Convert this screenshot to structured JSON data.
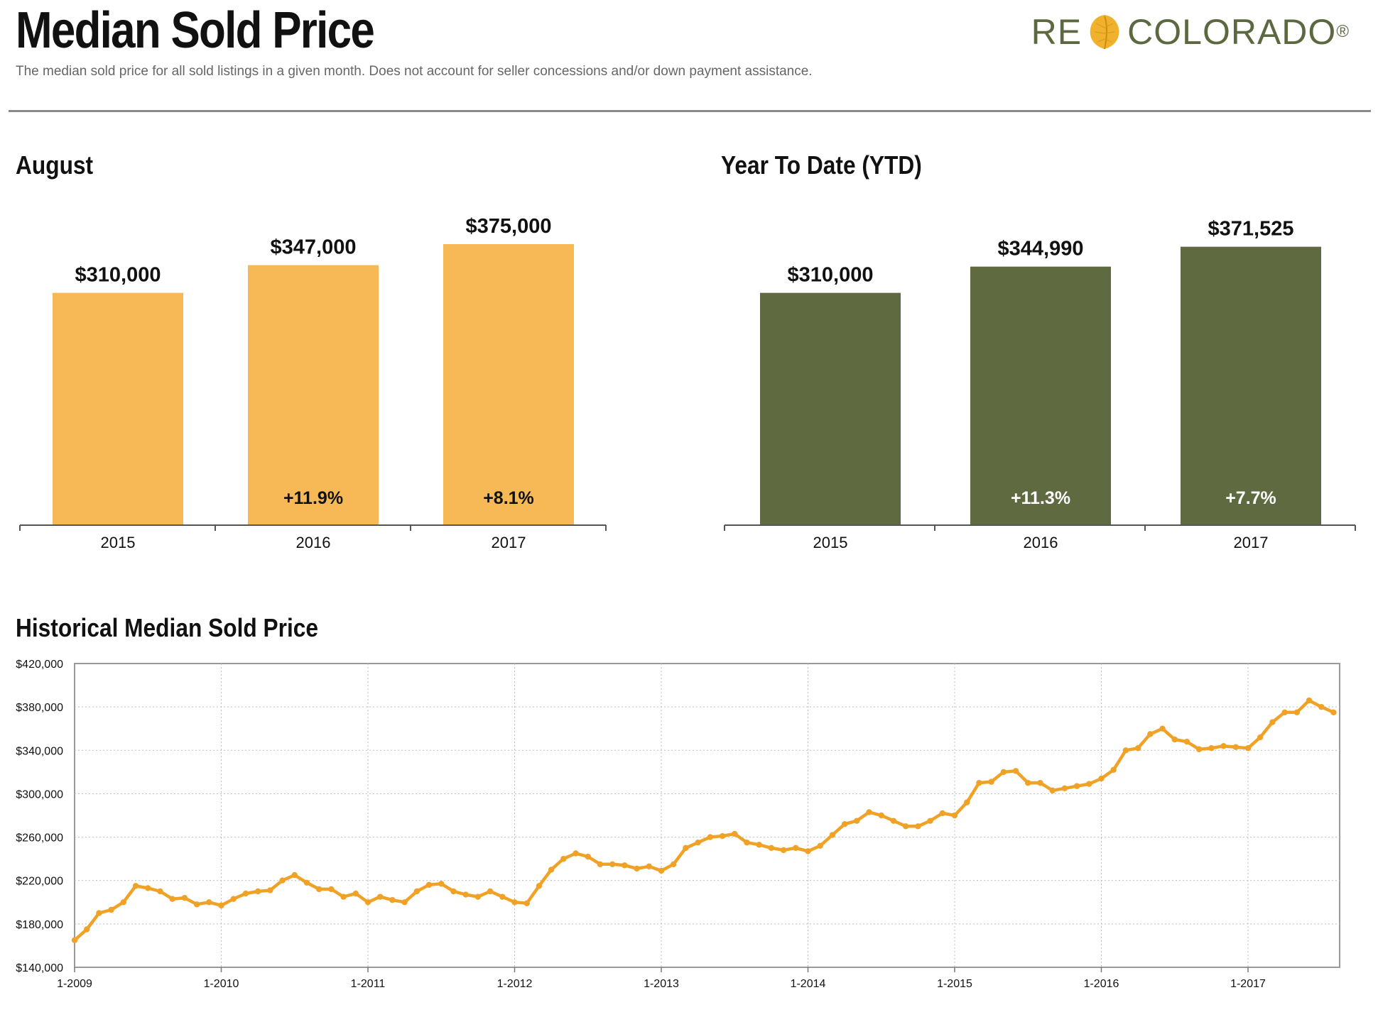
{
  "header": {
    "title": "Median Sold Price",
    "subtitle": "The median sold price for all sold listings in a given month. Does not account for seller concessions and/or down payment assistance.",
    "logo_left": "RE",
    "logo_right": "COLORADO",
    "logo_reg": "®"
  },
  "colors": {
    "august_bar": "#f6b955",
    "ytd_bar": "#5f6a41",
    "line": "#f0a226",
    "logo": "#5c6940"
  },
  "chart_data": [
    {
      "type": "bar",
      "title": "August",
      "categories": [
        "2015",
        "2016",
        "2017"
      ],
      "values": [
        310000,
        347000,
        375000
      ],
      "value_labels": [
        "$310,000",
        "$347,000",
        "$375,000"
      ],
      "change_labels": [
        "",
        "+11.9%",
        "+8.1%"
      ]
    },
    {
      "type": "bar",
      "title": "Year To Date (YTD)",
      "categories": [
        "2015",
        "2016",
        "2017"
      ],
      "values": [
        310000,
        344990,
        371525
      ],
      "value_labels": [
        "$310,000",
        "$344,990",
        "$371,525"
      ],
      "change_labels": [
        "",
        "+11.3%",
        "+7.7%"
      ]
    },
    {
      "type": "line",
      "title": "Historical Median Sold Price",
      "ylim": [
        140000,
        420000
      ],
      "y_ticks": [
        140000,
        180000,
        220000,
        260000,
        300000,
        340000,
        380000,
        420000
      ],
      "y_tick_labels": [
        "$140,000",
        "$180,000",
        "$220,000",
        "$260,000",
        "$300,000",
        "$340,000",
        "$380,000",
        "$420,000"
      ],
      "x_tick_labels": [
        "1-2009",
        "1-2010",
        "1-2011",
        "1-2012",
        "1-2013",
        "1-2014",
        "1-2015",
        "1-2016",
        "1-2017"
      ],
      "grid": true,
      "series": [
        {
          "start": "1-2009",
          "values": [
            165000,
            175000,
            190000,
            193000,
            200000,
            215000,
            213000,
            210000,
            203000,
            204000,
            198000,
            200000,
            197000,
            203000,
            208000,
            210000,
            211000,
            220000,
            225000,
            218000,
            212000,
            212000,
            205000,
            208000,
            200000,
            205000,
            202000,
            200000,
            210000,
            216000,
            217000,
            210000,
            207000,
            205000,
            210000,
            205000,
            200000,
            199000,
            215000,
            230000,
            240000,
            245000,
            242000,
            235000,
            235000,
            234000,
            231000,
            233000,
            229000,
            235000,
            250000,
            255000,
            260000,
            261000,
            263000,
            255000,
            253000,
            250000,
            248000,
            250000,
            247000,
            252000,
            262000,
            272000,
            275000,
            283000,
            280000,
            275000,
            270000,
            270000,
            275000,
            282000,
            280000,
            292000,
            310000,
            311000,
            320000,
            321000,
            310000,
            310000,
            303000,
            305000,
            307000,
            309000,
            314000,
            322000,
            340000,
            342000,
            355000,
            360000,
            350000,
            348000,
            341000,
            342000,
            344000,
            343000,
            342000,
            352000,
            366000,
            375000,
            375000,
            386000,
            380000,
            375000
          ]
        }
      ]
    }
  ]
}
